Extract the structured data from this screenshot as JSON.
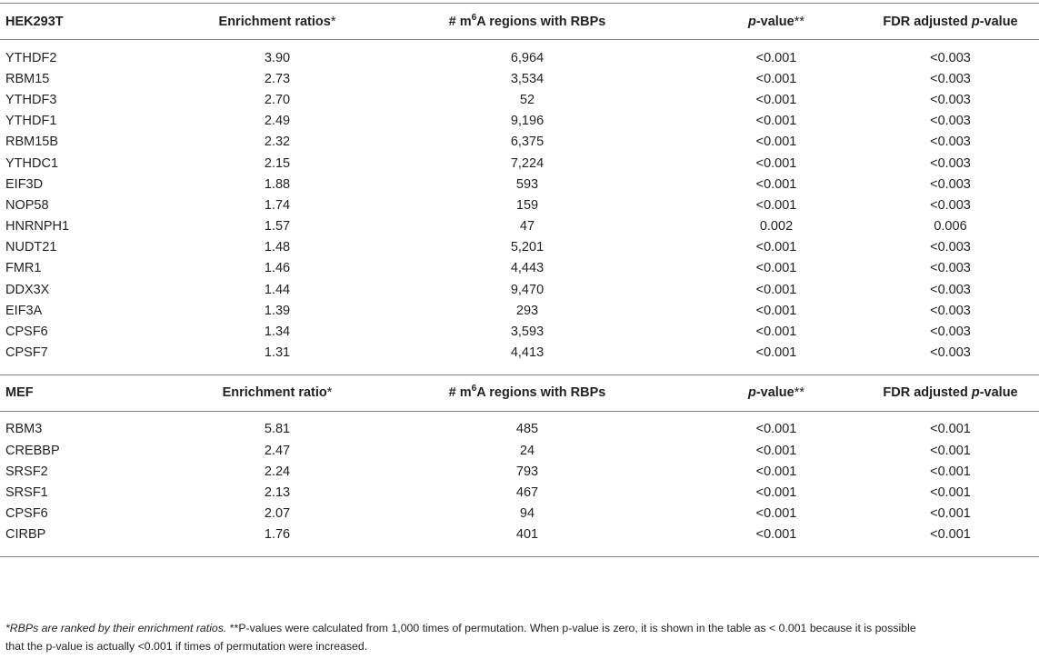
{
  "sections": [
    {
      "headers": {
        "cell_line": "HEK293T",
        "enrichment": "Enrichment ratios",
        "enrichment_mark": "*",
        "regions_pre": "# m",
        "regions_sup": "6",
        "regions_post": "A regions with RBPs",
        "pvalue_italic": "p",
        "pvalue_rest": "-value",
        "pvalue_mark": "**",
        "fdr_pre": "FDR adjusted ",
        "fdr_italic": "p",
        "fdr_rest": "-value"
      },
      "rows": [
        [
          "YTHDF2",
          "3.90",
          "6,964",
          "<0.001",
          "<0.003"
        ],
        [
          "RBM15",
          "2.73",
          "3,534",
          "<0.001",
          "<0.003"
        ],
        [
          "YTHDF3",
          "2.70",
          "52",
          "<0.001",
          "<0.003"
        ],
        [
          "YTHDF1",
          "2.49",
          "9,196",
          "<0.001",
          "<0.003"
        ],
        [
          "RBM15B",
          "2.32",
          "6,375",
          "<0.001",
          "<0.003"
        ],
        [
          "YTHDC1",
          "2.15",
          "7,224",
          "<0.001",
          "<0.003"
        ],
        [
          "EIF3D",
          "1.88",
          "593",
          "<0.001",
          "<0.003"
        ],
        [
          "NOP58",
          "1.74",
          "159",
          "<0.001",
          "<0.003"
        ],
        [
          "HNRNPH1",
          "1.57",
          "47",
          "0.002",
          "0.006"
        ],
        [
          "NUDT21",
          "1.48",
          "5,201",
          "<0.001",
          "<0.003"
        ],
        [
          "FMR1",
          "1.46",
          "4,443",
          "<0.001",
          "<0.003"
        ],
        [
          "DDX3X",
          "1.44",
          "9,470",
          "<0.001",
          "<0.003"
        ],
        [
          "EIF3A",
          "1.39",
          "293",
          "<0.001",
          "<0.003"
        ],
        [
          "CPSF6",
          "1.34",
          "3,593",
          "<0.001",
          "<0.003"
        ],
        [
          "CPSF7",
          "1.31",
          "4,413",
          "<0.001",
          "<0.003"
        ]
      ]
    },
    {
      "headers": {
        "cell_line": "MEF",
        "enrichment": "Enrichment ratio",
        "enrichment_mark": "*",
        "regions_pre": "# m",
        "regions_sup": "6",
        "regions_post": "A regions with RBPs",
        "pvalue_italic": "p",
        "pvalue_rest": "-value",
        "pvalue_mark": "**",
        "fdr_pre": "FDR adjusted ",
        "fdr_italic": "p",
        "fdr_rest": "-value"
      },
      "rows": [
        [
          "RBM3",
          "5.81",
          "485",
          "<0.001",
          "<0.001"
        ],
        [
          "CREBBP",
          "2.47",
          "24",
          "<0.001",
          "<0.001"
        ],
        [
          "SRSF2",
          "2.24",
          "793",
          "<0.001",
          "<0.001"
        ],
        [
          "SRSF1",
          "2.13",
          "467",
          "<0.001",
          "<0.001"
        ],
        [
          "CPSF6",
          "2.07",
          "94",
          "<0.001",
          "<0.001"
        ],
        [
          "CIRBP",
          "1.76",
          "401",
          "<0.001",
          "<0.001"
        ]
      ]
    }
  ],
  "footnote": {
    "mark1": "*",
    "text1": "RBPs are ranked by their enrichment ratios.",
    "mark2": " **",
    "text2": "P-values were calculated from 1,000 times of permutation. When p-value is zero, it is shown in the table as < 0.001 because it is possible",
    "text3": "that the p-value is actually <0.001 if times of permutation were increased."
  }
}
